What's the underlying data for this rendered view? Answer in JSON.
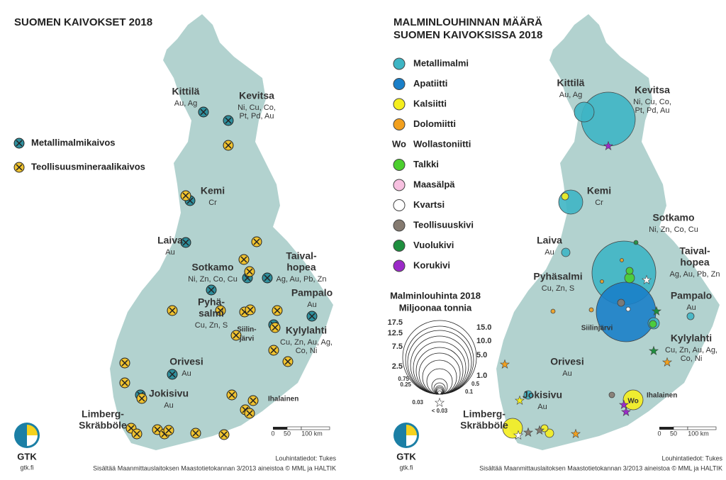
{
  "left": {
    "title": "SUOMEN KAIVOKSET 2018",
    "legend": [
      "Metallimalmikaivos",
      "Teollisuusmineraalikaivos"
    ],
    "places": [
      {
        "name": [
          "Kittilä"
        ],
        "minerals": [
          "Au, Ag"
        ]
      },
      {
        "name": [
          "Kevitsa"
        ],
        "minerals": [
          "Ni, Cu, Co,",
          "Pt, Pd, Au"
        ]
      },
      {
        "name": [
          "Kemi"
        ],
        "minerals": [
          "Cr"
        ]
      },
      {
        "name": [
          "Laiva"
        ],
        "minerals": [
          "Au"
        ]
      },
      {
        "name": [
          "Sotkamo"
        ],
        "minerals": [
          "Ni, Zn, Co, Cu"
        ]
      },
      {
        "name": [
          "Taival-",
          "hopea"
        ],
        "minerals": [
          "Ag, Au, Pb, Zn"
        ]
      },
      {
        "name": [
          "Pampalo"
        ],
        "minerals": [
          "Au"
        ]
      },
      {
        "name": [
          "Pyhä-",
          "salmi"
        ],
        "minerals": [
          "Cu, Zn, S"
        ]
      },
      {
        "name": [
          "Siilin-",
          "järvi"
        ],
        "minerals": []
      },
      {
        "name": [
          "Kylylahti"
        ],
        "minerals": [
          "Cu, Zn, Au, Ag,",
          "Co, Ni"
        ]
      },
      {
        "name": [
          "Orivesi"
        ],
        "minerals": [
          "Au"
        ]
      },
      {
        "name": [
          "Jokisivu"
        ],
        "minerals": [
          "Au"
        ]
      },
      {
        "name": [
          "Ihalainen"
        ],
        "minerals": []
      },
      {
        "name": [
          "Limberg-",
          "Skräbböle"
        ],
        "minerals": []
      }
    ]
  },
  "right": {
    "title": [
      "MALMINLOUHINNAN MÄÄRÄ",
      "SUOMEN KAIVOKSISSA 2018"
    ],
    "legend": [
      "Metallimalmi",
      "Apatiitti",
      "Kalsiitti",
      "Dolomiitti",
      "Wollastoniitti",
      "Talkki",
      "Maasälpä",
      "Kvartsi",
      "Teollisuuskivi",
      "Vuolukivi",
      "Korukivi"
    ],
    "legend_symbol": "Wo",
    "size_legend": {
      "title": [
        "Malminlouhinta 2018",
        "Miljoonaa tonnia"
      ],
      "labels": [
        "17.5",
        "12.5",
        "7.5",
        "2.5",
        "0.75",
        "0.25",
        "0.03",
        "15.0",
        "10.0",
        "5.0",
        "1.0",
        "0.5",
        "0.1",
        "< 0.03"
      ]
    },
    "places": [
      {
        "name": [
          "Kittilä"
        ],
        "minerals": [
          "Au, Ag"
        ]
      },
      {
        "name": [
          "Kevitsa"
        ],
        "minerals": [
          "Ni, Cu, Co,",
          "Pt, Pd, Au"
        ]
      },
      {
        "name": [
          "Kemi"
        ],
        "minerals": [
          "Cr"
        ]
      },
      {
        "name": [
          "Laiva"
        ],
        "minerals": [
          "Au"
        ]
      },
      {
        "name": [
          "Sotkamo"
        ],
        "minerals": [
          "Ni, Zn, Co, Cu"
        ]
      },
      {
        "name": [
          "Taival-",
          "hopea"
        ],
        "minerals": [
          "Ag, Au, Pb, Zn"
        ]
      },
      {
        "name": [
          "Pampalo"
        ],
        "minerals": [
          "Au"
        ]
      },
      {
        "name": [
          "Pyhäsalmi"
        ],
        "minerals": [
          "Cu, Zn, S"
        ]
      },
      {
        "name": [
          "Siilinjärvi"
        ],
        "minerals": []
      },
      {
        "name": [
          "Kylylahti"
        ],
        "minerals": [
          "Cu, Zn, Au, Ag,",
          "Co, Ni"
        ]
      },
      {
        "name": [
          "Orivesi"
        ],
        "minerals": [
          "Au"
        ]
      },
      {
        "name": [
          "Jokisivu"
        ],
        "minerals": [
          "Au"
        ]
      },
      {
        "name": [
          "Ihalainen"
        ],
        "minerals": []
      },
      {
        "name": [
          "Limberg-",
          "Skräbböle"
        ],
        "minerals": []
      }
    ]
  },
  "scale": [
    "0",
    "50",
    "100 km"
  ],
  "logo": {
    "name": "GTK",
    "url": "gtk.fi"
  },
  "credits": [
    "Louhintatiedot: Tukes",
    "Sisältää Maanmittauslaitoksen Maastotietokannan 3/2013 aineistoa © MML ja HALTIK"
  ]
}
